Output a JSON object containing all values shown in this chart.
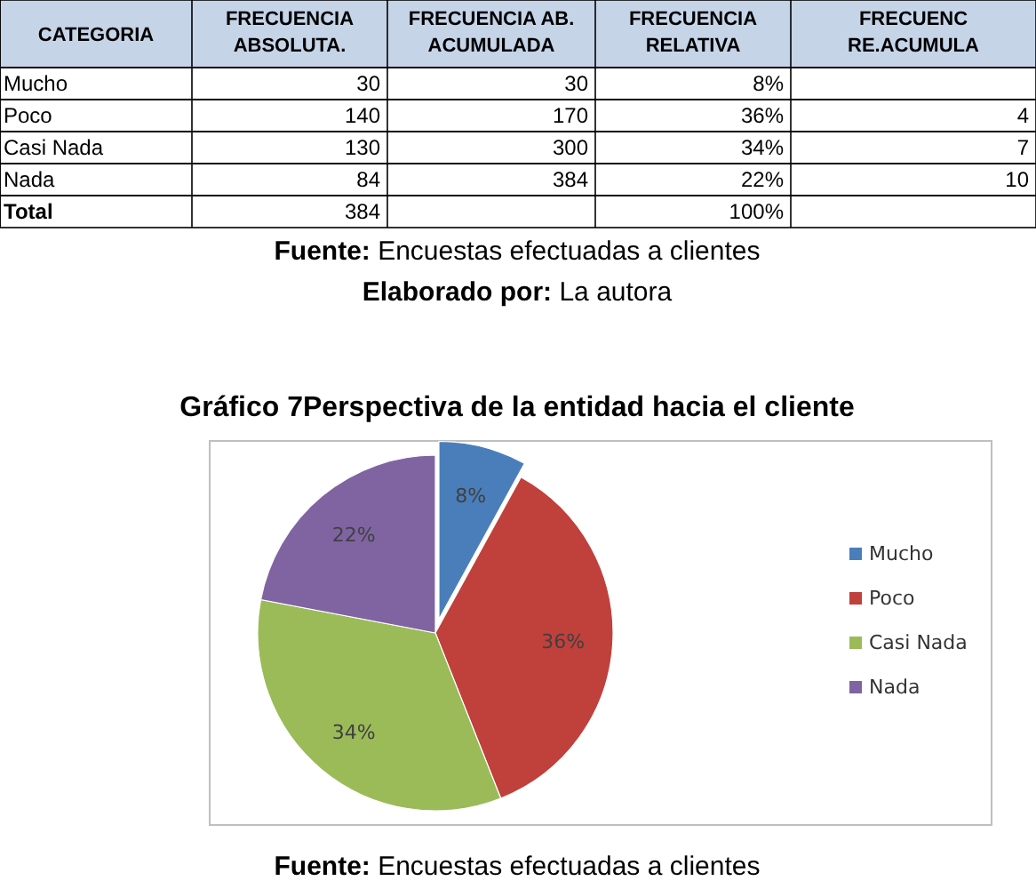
{
  "chart_data": {
    "type": "pie",
    "title": "Gráfico 7Perspectiva de la entidad hacia el cliente",
    "categories": [
      "Mucho",
      "Poco",
      "Casi Nada",
      "Nada"
    ],
    "values": [
      8,
      36,
      34,
      22
    ],
    "colors": [
      "#4a7ebb",
      "#c0403c",
      "#9bbb59",
      "#8064a2"
    ],
    "value_labels": [
      "8%",
      "36%",
      "34%",
      "22%"
    ],
    "legend": "right",
    "annotations": [
      "CATEGORIA",
      "FRECUENCIA ABSOLUTA.",
      "FRECUENCIA AB. ACUMULADA",
      "FRECUENCIA RELATIVA",
      "FRECUENC RE.ACUMULA",
      "Mucho",
      "30",
      "30",
      "8%",
      "Poco",
      "140",
      "170",
      "36%",
      "4",
      "Casi Nada",
      "130",
      "300",
      "34%",
      "7",
      "Nada",
      "84",
      "384",
      "22%",
      "10",
      "Total",
      "384",
      "100%",
      "Fuente: Encuestas efectuadas a clientes",
      "Elaborado por: La autora",
      "Fuente: Encuestas efectuadas a clientes"
    ]
  }
}
